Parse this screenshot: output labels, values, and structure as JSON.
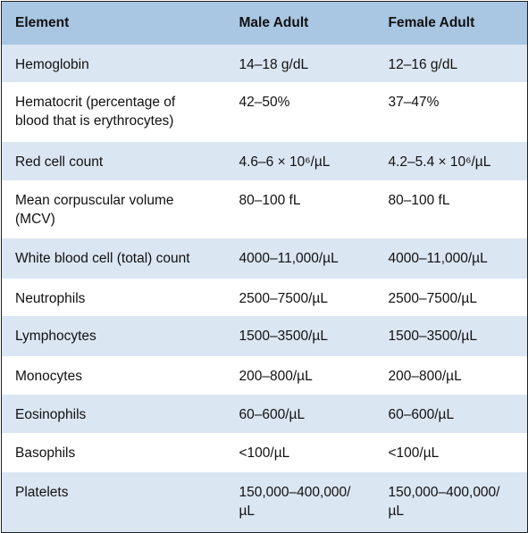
{
  "table": {
    "header": [
      "Element",
      "Male Adult",
      "Female Adult"
    ],
    "rows": [
      [
        "Hemoglobin",
        "14–18 g/dL",
        "12–16 g/dL"
      ],
      [
        "Hematocrit (percentage of blood that is erythrocytes)",
        "42–50%",
        "37–47%"
      ],
      [
        "Red cell count",
        "4.6–6 × 10⁶/µL",
        "4.2–5.4 × 10⁶/µL"
      ],
      [
        "Mean corpuscular volume (MCV)",
        "80–100 fL",
        "80–100 fL"
      ],
      [
        "White blood cell (total) count",
        "4000–11,000/µL",
        "4000–11,000/µL"
      ],
      [
        "Neutrophils",
        "2500–7500/µL",
        "2500–7500/µL"
      ],
      [
        "Lymphocytes",
        "1500–3500/µL",
        "1500–3500/µL"
      ],
      [
        "Monocytes",
        "200–800/µL",
        "200–800/µL"
      ],
      [
        "Eosinophils",
        "60–600/µL",
        "60–600/µL"
      ],
      [
        "Basophils",
        "<100/µL",
        "<100/µL"
      ],
      [
        "Platelets",
        "150,000–400,000/µL",
        "150,000–400,000/µL"
      ]
    ]
  }
}
